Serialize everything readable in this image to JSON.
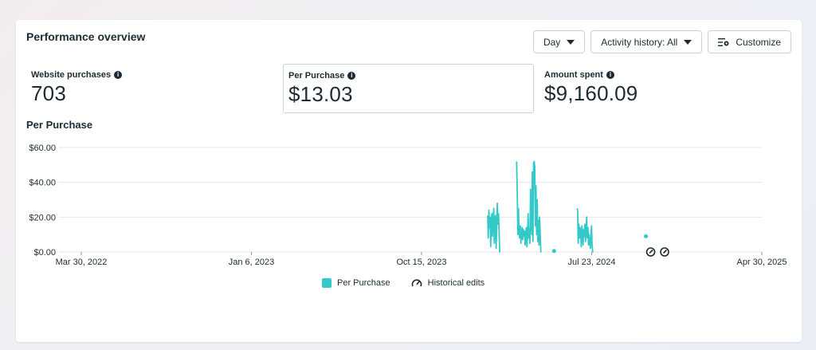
{
  "header": {
    "title": "Performance overview"
  },
  "toolbar": {
    "day_label": "Day",
    "activity_label": "Activity history: All",
    "customize_label": "Customize"
  },
  "metrics": [
    {
      "label": "Website purchases",
      "value": "703"
    },
    {
      "label": "Per Purchase",
      "value": "$13.03"
    },
    {
      "label": "Amount spent",
      "value": "$9,160.09"
    }
  ],
  "colors": {
    "series": "#33c9c9",
    "grid": "#e4e6eb",
    "text": "#1c2b33"
  },
  "chart_data": {
    "type": "line",
    "title": "Per Purchase",
    "x_ticks": [
      "Mar 30, 2022",
      "Jan 6, 2023",
      "Oct 15, 2023",
      "Jul 23, 2024",
      "Apr 30, 2025"
    ],
    "xlim": [
      "2022-03-30",
      "2025-04-30"
    ],
    "y_ticks": [
      "$0.00",
      "$20.00",
      "$40.00",
      "$60.00"
    ],
    "ylim": [
      0,
      60
    ],
    "grid": true,
    "legend_position": "bottom",
    "series": [
      {
        "name": "Per Purchase",
        "x": [
          "2024-02-01",
          "2024-02-02",
          "2024-02-03",
          "2024-02-04",
          "2024-02-05",
          "2024-02-06",
          "2024-02-07",
          "2024-02-08",
          "2024-02-09",
          "2024-02-10",
          "2024-02-11",
          "2024-02-12",
          "2024-02-13",
          "2024-02-14",
          "2024-02-15",
          "2024-02-16",
          "2024-02-17",
          "2024-02-18",
          "2024-02-19",
          "2024-02-20",
          "2024-02-21",
          "2024-02-22",
          "2024-03-20",
          "2024-03-21",
          "2024-03-22",
          "2024-03-23",
          "2024-03-24",
          "2024-03-25",
          "2024-03-26",
          "2024-03-27",
          "2024-03-28",
          "2024-03-29",
          "2024-03-30",
          "2024-03-31",
          "2024-04-01",
          "2024-04-02",
          "2024-04-03",
          "2024-04-04",
          "2024-04-05",
          "2024-04-06",
          "2024-04-07",
          "2024-04-08",
          "2024-04-09",
          "2024-04-10",
          "2024-04-11",
          "2024-04-12",
          "2024-04-13",
          "2024-04-14",
          "2024-04-15",
          "2024-04-16",
          "2024-04-17",
          "2024-04-18",
          "2024-04-19",
          "2024-04-20",
          "2024-04-21",
          "2024-04-22",
          "2024-04-23",
          "2024-04-24",
          "2024-04-25",
          "2024-04-26",
          "2024-04-27",
          "2024-04-28",
          "2024-04-29",
          "2024-04-30",
          "2024-05-21",
          "2024-06-28",
          "2024-06-29",
          "2024-06-30",
          "2024-07-01",
          "2024-07-02",
          "2024-07-03",
          "2024-07-04",
          "2024-07-05",
          "2024-07-06",
          "2024-07-07",
          "2024-07-08",
          "2024-07-09",
          "2024-07-10",
          "2024-07-11",
          "2024-07-12",
          "2024-07-13",
          "2024-07-14",
          "2024-07-15",
          "2024-07-16",
          "2024-07-17",
          "2024-07-18",
          "2024-07-19",
          "2024-07-20",
          "2024-07-21",
          "2024-07-22",
          "2024-07-23",
          "2024-07-24",
          "2024-07-25",
          "2024-10-20"
        ],
        "y": [
          21,
          8,
          24,
          14,
          20,
          3,
          18,
          22,
          9,
          19,
          25,
          5,
          15,
          21,
          2,
          13,
          28,
          16,
          22,
          10,
          0,
          0,
          52,
          35,
          10,
          25,
          12,
          8,
          15,
          5,
          11,
          14,
          7,
          13,
          9,
          12,
          4,
          10,
          14,
          3,
          9,
          22,
          8,
          13,
          5,
          36,
          17,
          10,
          46,
          6,
          51,
          52,
          49,
          15,
          38,
          10,
          30,
          6,
          18,
          4,
          20,
          10,
          0,
          0,
          0.5,
          25,
          24,
          5,
          16,
          8,
          14,
          12,
          3,
          15,
          10,
          4,
          13,
          9,
          16,
          6,
          11,
          20,
          8,
          14,
          4,
          10,
          6,
          2,
          9,
          15,
          3,
          0,
          0,
          9
        ]
      }
    ],
    "historical_edits": [
      "2024-10-28",
      "2024-11-20"
    ],
    "legend": [
      "Per Purchase",
      "Historical edits"
    ]
  }
}
